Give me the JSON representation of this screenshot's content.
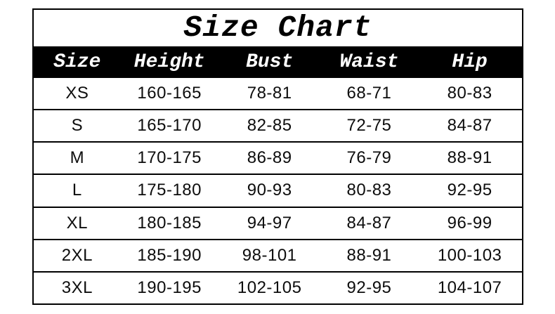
{
  "title": "Size Chart",
  "chart_data": {
    "type": "table",
    "title": "Size Chart",
    "columns": [
      "Size",
      "Height",
      "Bust",
      "Waist",
      "Hip"
    ],
    "rows": [
      [
        "XS",
        "160-165",
        "78-81",
        "68-71",
        "80-83"
      ],
      [
        "S",
        "165-170",
        "82-85",
        "72-75",
        "84-87"
      ],
      [
        "M",
        "170-175",
        "86-89",
        "76-79",
        "88-91"
      ],
      [
        "L",
        "175-180",
        "90-93",
        "80-83",
        "92-95"
      ],
      [
        "XL",
        "180-185",
        "94-97",
        "84-87",
        "96-99"
      ],
      [
        "2XL",
        "185-190",
        "98-101",
        "88-91",
        "100-103"
      ],
      [
        "3XL",
        "190-195",
        "102-105",
        "92-95",
        "104-107"
      ]
    ]
  },
  "colors": {
    "background": "#ffffff",
    "border": "#000000",
    "header_bg": "#000000",
    "header_text": "#ffffff",
    "body_text": "#0d0d0d"
  }
}
